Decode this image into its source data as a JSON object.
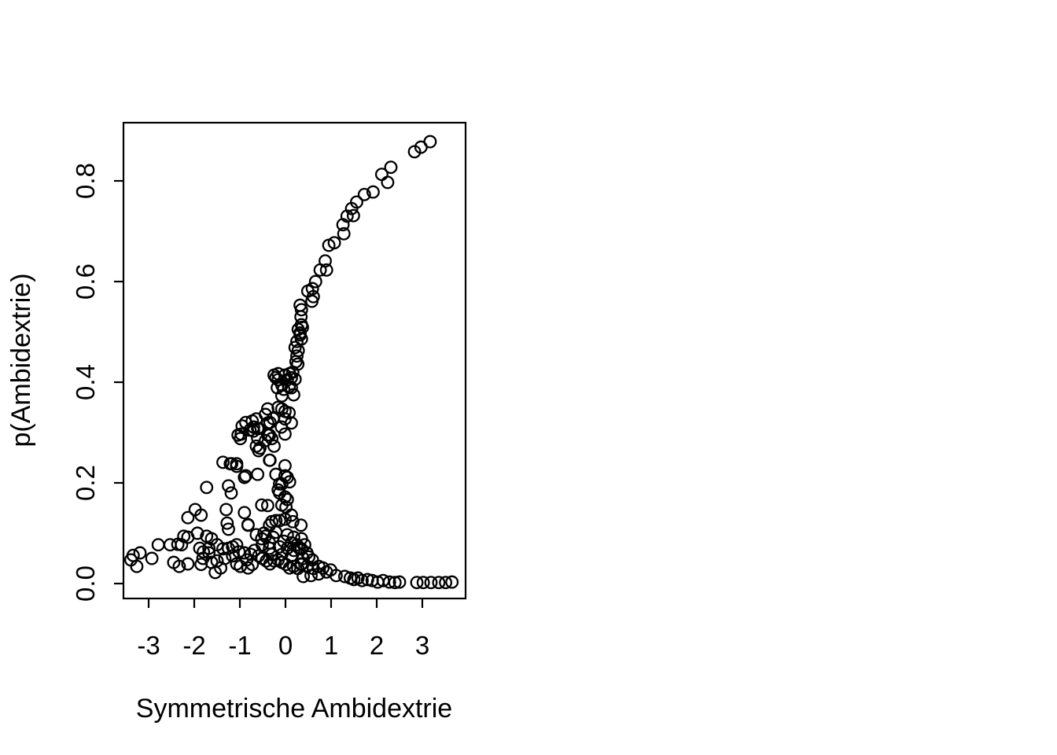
{
  "chart_data": {
    "type": "scatter",
    "title": "",
    "xlabel": "Symmetrische Ambidextrie",
    "ylabel": "p(Ambidextrie)",
    "x_ticks": [
      -3,
      -2,
      -1,
      0,
      1,
      2,
      3
    ],
    "x_tick_labels": [
      "-3",
      "-2",
      "-1",
      "0",
      "1",
      "2",
      "3"
    ],
    "y_ticks": [
      0.0,
      0.2,
      0.4,
      0.6,
      0.8
    ],
    "y_tick_labels": [
      "0.0",
      "0.2",
      "0.4",
      "0.6",
      "0.8"
    ],
    "xlim": [
      -3.55,
      3.95
    ],
    "ylim": [
      -0.03,
      0.915
    ],
    "grid": false,
    "legend": null,
    "marker": {
      "shape": "open-circle",
      "color": "#000000"
    },
    "points": [
      [
        2.83,
        0.858
      ],
      [
        2.97,
        0.867
      ],
      [
        3.17,
        0.878
      ],
      [
        2.31,
        0.827
      ],
      [
        2.11,
        0.813
      ],
      [
        2.24,
        0.797
      ],
      [
        1.92,
        0.778
      ],
      [
        1.73,
        0.773
      ],
      [
        1.56,
        0.758
      ],
      [
        1.45,
        0.745
      ],
      [
        1.49,
        0.731
      ],
      [
        1.35,
        0.73
      ],
      [
        1.26,
        0.713
      ],
      [
        1.28,
        0.695
      ],
      [
        1.07,
        0.677
      ],
      [
        0.95,
        0.672
      ],
      [
        0.87,
        0.641
      ],
      [
        0.9,
        0.623
      ],
      [
        0.76,
        0.623
      ],
      [
        0.66,
        0.6
      ],
      [
        0.59,
        0.586
      ],
      [
        0.49,
        0.581
      ],
      [
        0.61,
        0.57
      ],
      [
        0.58,
        0.561
      ],
      [
        0.32,
        0.553
      ],
      [
        0.35,
        0.544
      ],
      [
        0.35,
        0.514
      ],
      [
        0.32,
        0.498
      ],
      [
        0.34,
        0.53
      ],
      [
        0.37,
        0.509
      ],
      [
        0.28,
        0.505
      ],
      [
        0.32,
        0.494
      ],
      [
        0.35,
        0.486
      ],
      [
        0.25,
        0.481
      ],
      [
        0.21,
        0.469
      ],
      [
        0.28,
        0.463
      ],
      [
        0.25,
        0.452
      ],
      [
        0.23,
        0.441
      ],
      [
        0.27,
        0.436
      ],
      [
        0.16,
        0.42
      ],
      [
        0.09,
        0.417
      ],
      [
        -0.01,
        0.414
      ],
      [
        0.13,
        0.409
      ],
      [
        0.21,
        0.406
      ],
      [
        0.04,
        0.405
      ],
      [
        0.08,
        0.391
      ],
      [
        0.13,
        0.389
      ],
      [
        -0.16,
        0.417
      ],
      [
        -0.08,
        0.394
      ],
      [
        -0.25,
        0.414
      ],
      [
        -0.16,
        0.405
      ],
      [
        -0.18,
        0.389
      ],
      [
        -0.21,
        0.409
      ],
      [
        -0.04,
        0.386
      ],
      [
        -0.39,
        0.347
      ],
      [
        -0.16,
        0.35
      ],
      [
        -0.01,
        0.342
      ],
      [
        -0.08,
        0.373
      ],
      [
        0.18,
        0.375
      ],
      [
        -0.08,
        0.347
      ],
      [
        0.08,
        0.339
      ],
      [
        -0.44,
        0.336
      ],
      [
        -0.01,
        0.327
      ],
      [
        0.13,
        0.319
      ],
      [
        -0.87,
        0.32
      ],
      [
        -0.73,
        0.323
      ],
      [
        -0.64,
        0.327
      ],
      [
        -0.7,
        0.311
      ],
      [
        -0.61,
        0.308
      ],
      [
        -0.39,
        0.319
      ],
      [
        -0.97,
        0.297
      ],
      [
        -0.35,
        0.295
      ],
      [
        -0.01,
        0.297
      ],
      [
        -0.25,
        0.273
      ],
      [
        -0.59,
        0.264
      ],
      [
        -1.18,
        0.238
      ],
      [
        -1.07,
        0.233
      ],
      [
        -0.35,
        0.245
      ],
      [
        -0.01,
        0.234
      ],
      [
        0.04,
        0.211
      ],
      [
        -0.61,
        0.217
      ],
      [
        -0.9,
        0.211
      ],
      [
        -0.08,
        0.198
      ],
      [
        0.09,
        0.202
      ],
      [
        -0.95,
        0.313
      ],
      [
        -1.04,
        0.295
      ],
      [
        -0.78,
        0.305
      ],
      [
        -0.7,
        0.303
      ],
      [
        -0.59,
        0.308
      ],
      [
        -0.34,
        0.32
      ],
      [
        -0.27,
        0.328
      ],
      [
        -0.09,
        0.311
      ],
      [
        -0.39,
        0.295
      ],
      [
        -0.3,
        0.288
      ],
      [
        -0.64,
        0.273
      ],
      [
        -0.56,
        0.269
      ],
      [
        -0.99,
        0.288
      ],
      [
        -0.61,
        0.289
      ],
      [
        -0.44,
        0.284
      ],
      [
        -1.37,
        0.241
      ],
      [
        -1.21,
        0.238
      ],
      [
        -1.07,
        0.238
      ],
      [
        -0.34,
        0.245
      ],
      [
        -0.87,
        0.214
      ],
      [
        -1.73,
        0.191
      ],
      [
        -1.25,
        0.194
      ],
      [
        -1.19,
        0.18
      ],
      [
        -0.13,
        0.18
      ],
      [
        -1.98,
        0.147
      ],
      [
        -1.85,
        0.136
      ],
      [
        -1.3,
        0.147
      ],
      [
        -0.9,
        0.141
      ],
      [
        -1.28,
        0.12
      ],
      [
        -0.82,
        0.117
      ],
      [
        -0.13,
        0.125
      ],
      [
        -0.21,
        0.217
      ],
      [
        -0.01,
        0.214
      ],
      [
        -0.13,
        0.198
      ],
      [
        -0.16,
        0.186
      ],
      [
        -0.01,
        0.172
      ],
      [
        0.04,
        0.167
      ],
      [
        -0.39,
        0.155
      ],
      [
        -0.52,
        0.156
      ],
      [
        -0.08,
        0.156
      ],
      [
        0.01,
        0.152
      ],
      [
        0.13,
        0.136
      ],
      [
        -0.01,
        0.128
      ],
      [
        -0.3,
        0.123
      ],
      [
        -0.35,
        0.116
      ],
      [
        -0.21,
        0.102
      ],
      [
        -0.47,
        0.1
      ],
      [
        -0.27,
        0.092
      ],
      [
        0.04,
        0.097
      ],
      [
        0.18,
        0.092
      ],
      [
        -0.04,
        0.084
      ],
      [
        0.13,
        0.081
      ],
      [
        0.25,
        0.077
      ],
      [
        0.04,
        0.07
      ],
      [
        -0.13,
        0.073
      ],
      [
        -0.35,
        0.07
      ],
      [
        -0.51,
        0.077
      ],
      [
        0.18,
        0.066
      ],
      [
        0.35,
        0.069
      ],
      [
        0.47,
        0.061
      ],
      [
        -0.3,
        0.058
      ],
      [
        -0.08,
        0.058
      ],
      [
        0.13,
        0.055
      ],
      [
        -2.14,
        0.131
      ],
      [
        -1.93,
        0.1
      ],
      [
        -1.73,
        0.094
      ],
      [
        -2.14,
        0.092
      ],
      [
        -2.23,
        0.094
      ],
      [
        -2.79,
        0.077
      ],
      [
        -2.53,
        0.077
      ],
      [
        -2.36,
        0.078
      ],
      [
        -2.28,
        0.077
      ],
      [
        -3.19,
        0.061
      ],
      [
        -2.93,
        0.05
      ],
      [
        -3.26,
        0.034
      ],
      [
        -2.45,
        0.042
      ],
      [
        -2.33,
        0.034
      ],
      [
        -2.14,
        0.039
      ],
      [
        -1.88,
        0.07
      ],
      [
        -1.8,
        0.063
      ],
      [
        -1.81,
        0.05
      ],
      [
        -1.85,
        0.038
      ],
      [
        -1.68,
        0.061
      ],
      [
        -1.62,
        0.042
      ],
      [
        -1.54,
        0.022
      ],
      [
        -3.39,
        0.047
      ],
      [
        -3.34,
        0.056
      ],
      [
        -1.25,
        0.108
      ],
      [
        -0.82,
        0.116
      ],
      [
        -0.64,
        0.097
      ],
      [
        -0.52,
        0.089
      ],
      [
        -0.44,
        0.094
      ],
      [
        -0.35,
        0.081
      ],
      [
        -1.62,
        0.089
      ],
      [
        -1.5,
        0.077
      ],
      [
        -1.68,
        0.07
      ],
      [
        -1.37,
        0.069
      ],
      [
        -1.25,
        0.07
      ],
      [
        -1.16,
        0.073
      ],
      [
        -1.07,
        0.077
      ],
      [
        -1.02,
        0.063
      ],
      [
        -0.9,
        0.061
      ],
      [
        -1.16,
        0.055
      ],
      [
        -1.33,
        0.05
      ],
      [
        -1.5,
        0.045
      ],
      [
        -1.42,
        0.031
      ],
      [
        -1.07,
        0.039
      ],
      [
        -0.99,
        0.034
      ],
      [
        -0.82,
        0.031
      ],
      [
        -0.73,
        0.038
      ],
      [
        -0.85,
        0.047
      ],
      [
        -0.76,
        0.058
      ],
      [
        -0.68,
        0.066
      ],
      [
        -0.59,
        0.055
      ],
      [
        -0.51,
        0.05
      ],
      [
        -0.42,
        0.045
      ],
      [
        -0.34,
        0.039
      ],
      [
        -0.25,
        0.045
      ],
      [
        -0.16,
        0.047
      ],
      [
        -0.08,
        0.042
      ],
      [
        0.01,
        0.038
      ],
      [
        0.09,
        0.031
      ],
      [
        0.18,
        0.034
      ],
      [
        0.27,
        0.03
      ],
      [
        0.35,
        0.039
      ],
      [
        0.16,
        0.123
      ],
      [
        0.34,
        0.116
      ],
      [
        -0.21,
        0.125
      ],
      [
        0.35,
        0.089
      ],
      [
        0.42,
        0.077
      ],
      [
        0.3,
        0.07
      ],
      [
        0.51,
        0.053
      ],
      [
        0.39,
        0.05
      ],
      [
        0.59,
        0.047
      ],
      [
        0.35,
        0.038
      ],
      [
        0.47,
        0.034
      ],
      [
        0.61,
        0.03
      ],
      [
        0.73,
        0.034
      ],
      [
        0.82,
        0.031
      ],
      [
        0.73,
        0.019
      ],
      [
        0.56,
        0.016
      ],
      [
        0.39,
        0.014
      ],
      [
        0.9,
        0.023
      ],
      [
        0.99,
        0.027
      ],
      [
        1.11,
        0.016
      ],
      [
        1.3,
        0.014
      ],
      [
        1.42,
        0.011
      ],
      [
        1.5,
        0.008
      ],
      [
        1.59,
        0.011
      ],
      [
        1.68,
        0.006
      ],
      [
        1.8,
        0.008
      ],
      [
        1.9,
        0.006
      ],
      [
        2.02,
        0.003
      ],
      [
        2.14,
        0.006
      ],
      [
        2.28,
        0.003
      ],
      [
        2.4,
        0.002
      ],
      [
        2.5,
        0.003
      ],
      [
        2.88,
        0.002
      ],
      [
        3.02,
        0.002
      ],
      [
        3.19,
        0.002
      ],
      [
        3.36,
        0.002
      ],
      [
        3.51,
        0.002
      ],
      [
        3.65,
        0.003
      ]
    ]
  },
  "canvas": {
    "background": "#ffffff",
    "foreground": "#000000"
  }
}
